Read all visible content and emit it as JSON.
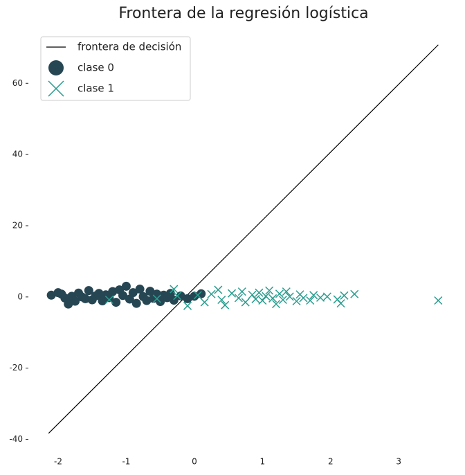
{
  "chart_data": {
    "type": "scatter",
    "title": "Frontera de la regresión logística",
    "xlim": [
      -2.4,
      3.8
    ],
    "ylim": [
      -43,
      76
    ],
    "xticks": [
      -2,
      -1,
      0,
      1,
      2,
      3
    ],
    "yticks": [
      -40,
      -20,
      0,
      20,
      40,
      60
    ],
    "grid": false,
    "legend": "upper left",
    "series": [
      {
        "name": "frontera de decisión",
        "type": "line",
        "color": "#000000",
        "x": [
          -2.14,
          3.58
        ],
        "values": [
          -38.3,
          70.8
        ]
      },
      {
        "name": "clase 0",
        "type": "scatter",
        "marker": "o",
        "color": "#264653",
        "x": [
          -2.1,
          -2.0,
          -1.95,
          -1.9,
          -1.85,
          -1.8,
          -1.75,
          -1.7,
          -1.65,
          -1.6,
          -1.55,
          -1.5,
          -1.45,
          -1.4,
          -1.35,
          -1.3,
          -1.25,
          -1.2,
          -1.15,
          -1.1,
          -1.05,
          -1.0,
          -0.95,
          -0.9,
          -0.85,
          -0.8,
          -0.75,
          -0.7,
          -0.65,
          -0.6,
          -0.55,
          -0.5,
          -0.45,
          -0.4,
          -0.35,
          -0.3,
          -0.2,
          -0.1,
          0.0,
          0.1
        ],
        "values": [
          0.5,
          1.2,
          0.8,
          -0.3,
          -2.0,
          0.2,
          -1.2,
          1.1,
          0,
          -0.5,
          1.8,
          -0.8,
          0.3,
          1.0,
          -1.1,
          0.6,
          -0.2,
          1.5,
          -1.5,
          2.0,
          0.4,
          3.0,
          -0.6,
          1.2,
          -1.8,
          2.2,
          0.1,
          -1.0,
          1.6,
          -0.4,
          0.8,
          -1.3,
          0.5,
          -0.2,
          1.0,
          -0.9,
          0.3,
          -0.5,
          0.2,
          0.9
        ]
      },
      {
        "name": "clase 1",
        "type": "scatter",
        "marker": "x",
        "color": "#2a9d8f",
        "x": [
          -1.25,
          -0.55,
          -0.3,
          -0.25,
          -0.1,
          0.05,
          0.15,
          0.25,
          0.35,
          0.4,
          0.45,
          0.55,
          0.65,
          0.7,
          0.75,
          0.85,
          0.9,
          0.95,
          1.0,
          1.05,
          1.1,
          1.15,
          1.2,
          1.25,
          1.3,
          1.35,
          1.4,
          1.5,
          1.55,
          1.6,
          1.7,
          1.75,
          1.85,
          1.95,
          2.1,
          2.15,
          2.2,
          2.35,
          3.58
        ],
        "values": [
          -0.8,
          -0.5,
          2.2,
          0.3,
          -2.5,
          0.5,
          -1.5,
          0.8,
          2.0,
          -0.8,
          -2.3,
          1.0,
          -0.3,
          1.5,
          -1.5,
          0.6,
          -0.6,
          1.2,
          -1.0,
          0.2,
          1.8,
          -0.4,
          -2.0,
          0.9,
          -0.8,
          1.5,
          0.1,
          -1.2,
          0.7,
          -0.3,
          -1.0,
          0.5,
          -0.2,
          0.1,
          -0.7,
          -1.8,
          0.4,
          0.8,
          -1.0
        ]
      }
    ]
  }
}
